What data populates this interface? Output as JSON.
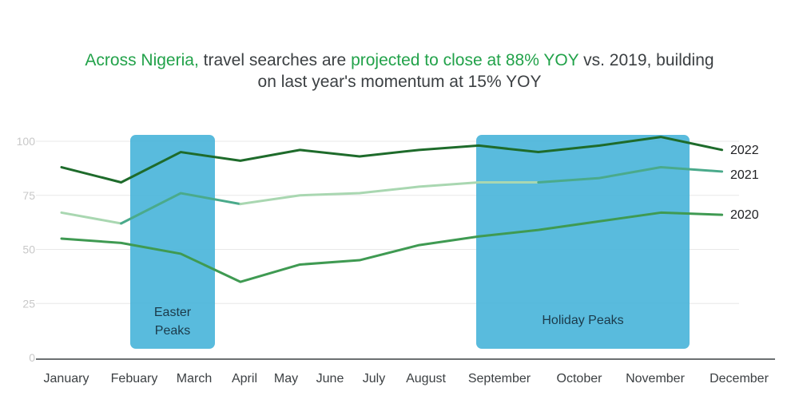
{
  "title": {
    "part1": "Across Nigeria,",
    "part2": " travel searches are ",
    "part3": "projected to close at 88% YOY",
    "part4": " vs. 2019, building",
    "line2": "on last year's momentum at 15% YOY"
  },
  "colors": {
    "accent_text": "#22a24a",
    "band": "#4bb5da",
    "s2022": "#1e6b2b",
    "s2021_light": "#a9d7b1",
    "s2021_dark": "#4aaa8b",
    "s2020": "#3f9a52",
    "grid": "#e8e8e8"
  },
  "chart_data": {
    "type": "line",
    "categories": [
      "January",
      "Febuary",
      "March",
      "April",
      "May",
      "June",
      "July",
      "August",
      "September",
      "October",
      "November",
      "December"
    ],
    "ylim": [
      0,
      100
    ],
    "yticks": [
      0,
      25,
      50,
      75,
      100
    ],
    "grid": true,
    "series": [
      {
        "name": "2022",
        "values": [
          88,
          81,
          95,
          91,
          96,
          93,
          96,
          98,
          95,
          98,
          102,
          96
        ]
      },
      {
        "name": "2021",
        "values": [
          67,
          62,
          76,
          71,
          75,
          76,
          79,
          81,
          81,
          83,
          88,
          86
        ]
      },
      {
        "name": "2020",
        "values": [
          55,
          53,
          48,
          35,
          43,
          45,
          52,
          56,
          59,
          63,
          67,
          66
        ]
      }
    ],
    "bands": [
      {
        "label_line1": "Easter",
        "label_line2": "Peaks",
        "from": "Febuary",
        "to": "March"
      },
      {
        "label_line1": "Holiday Peaks",
        "label_line2": "",
        "from": "September",
        "to": "November"
      }
    ]
  }
}
